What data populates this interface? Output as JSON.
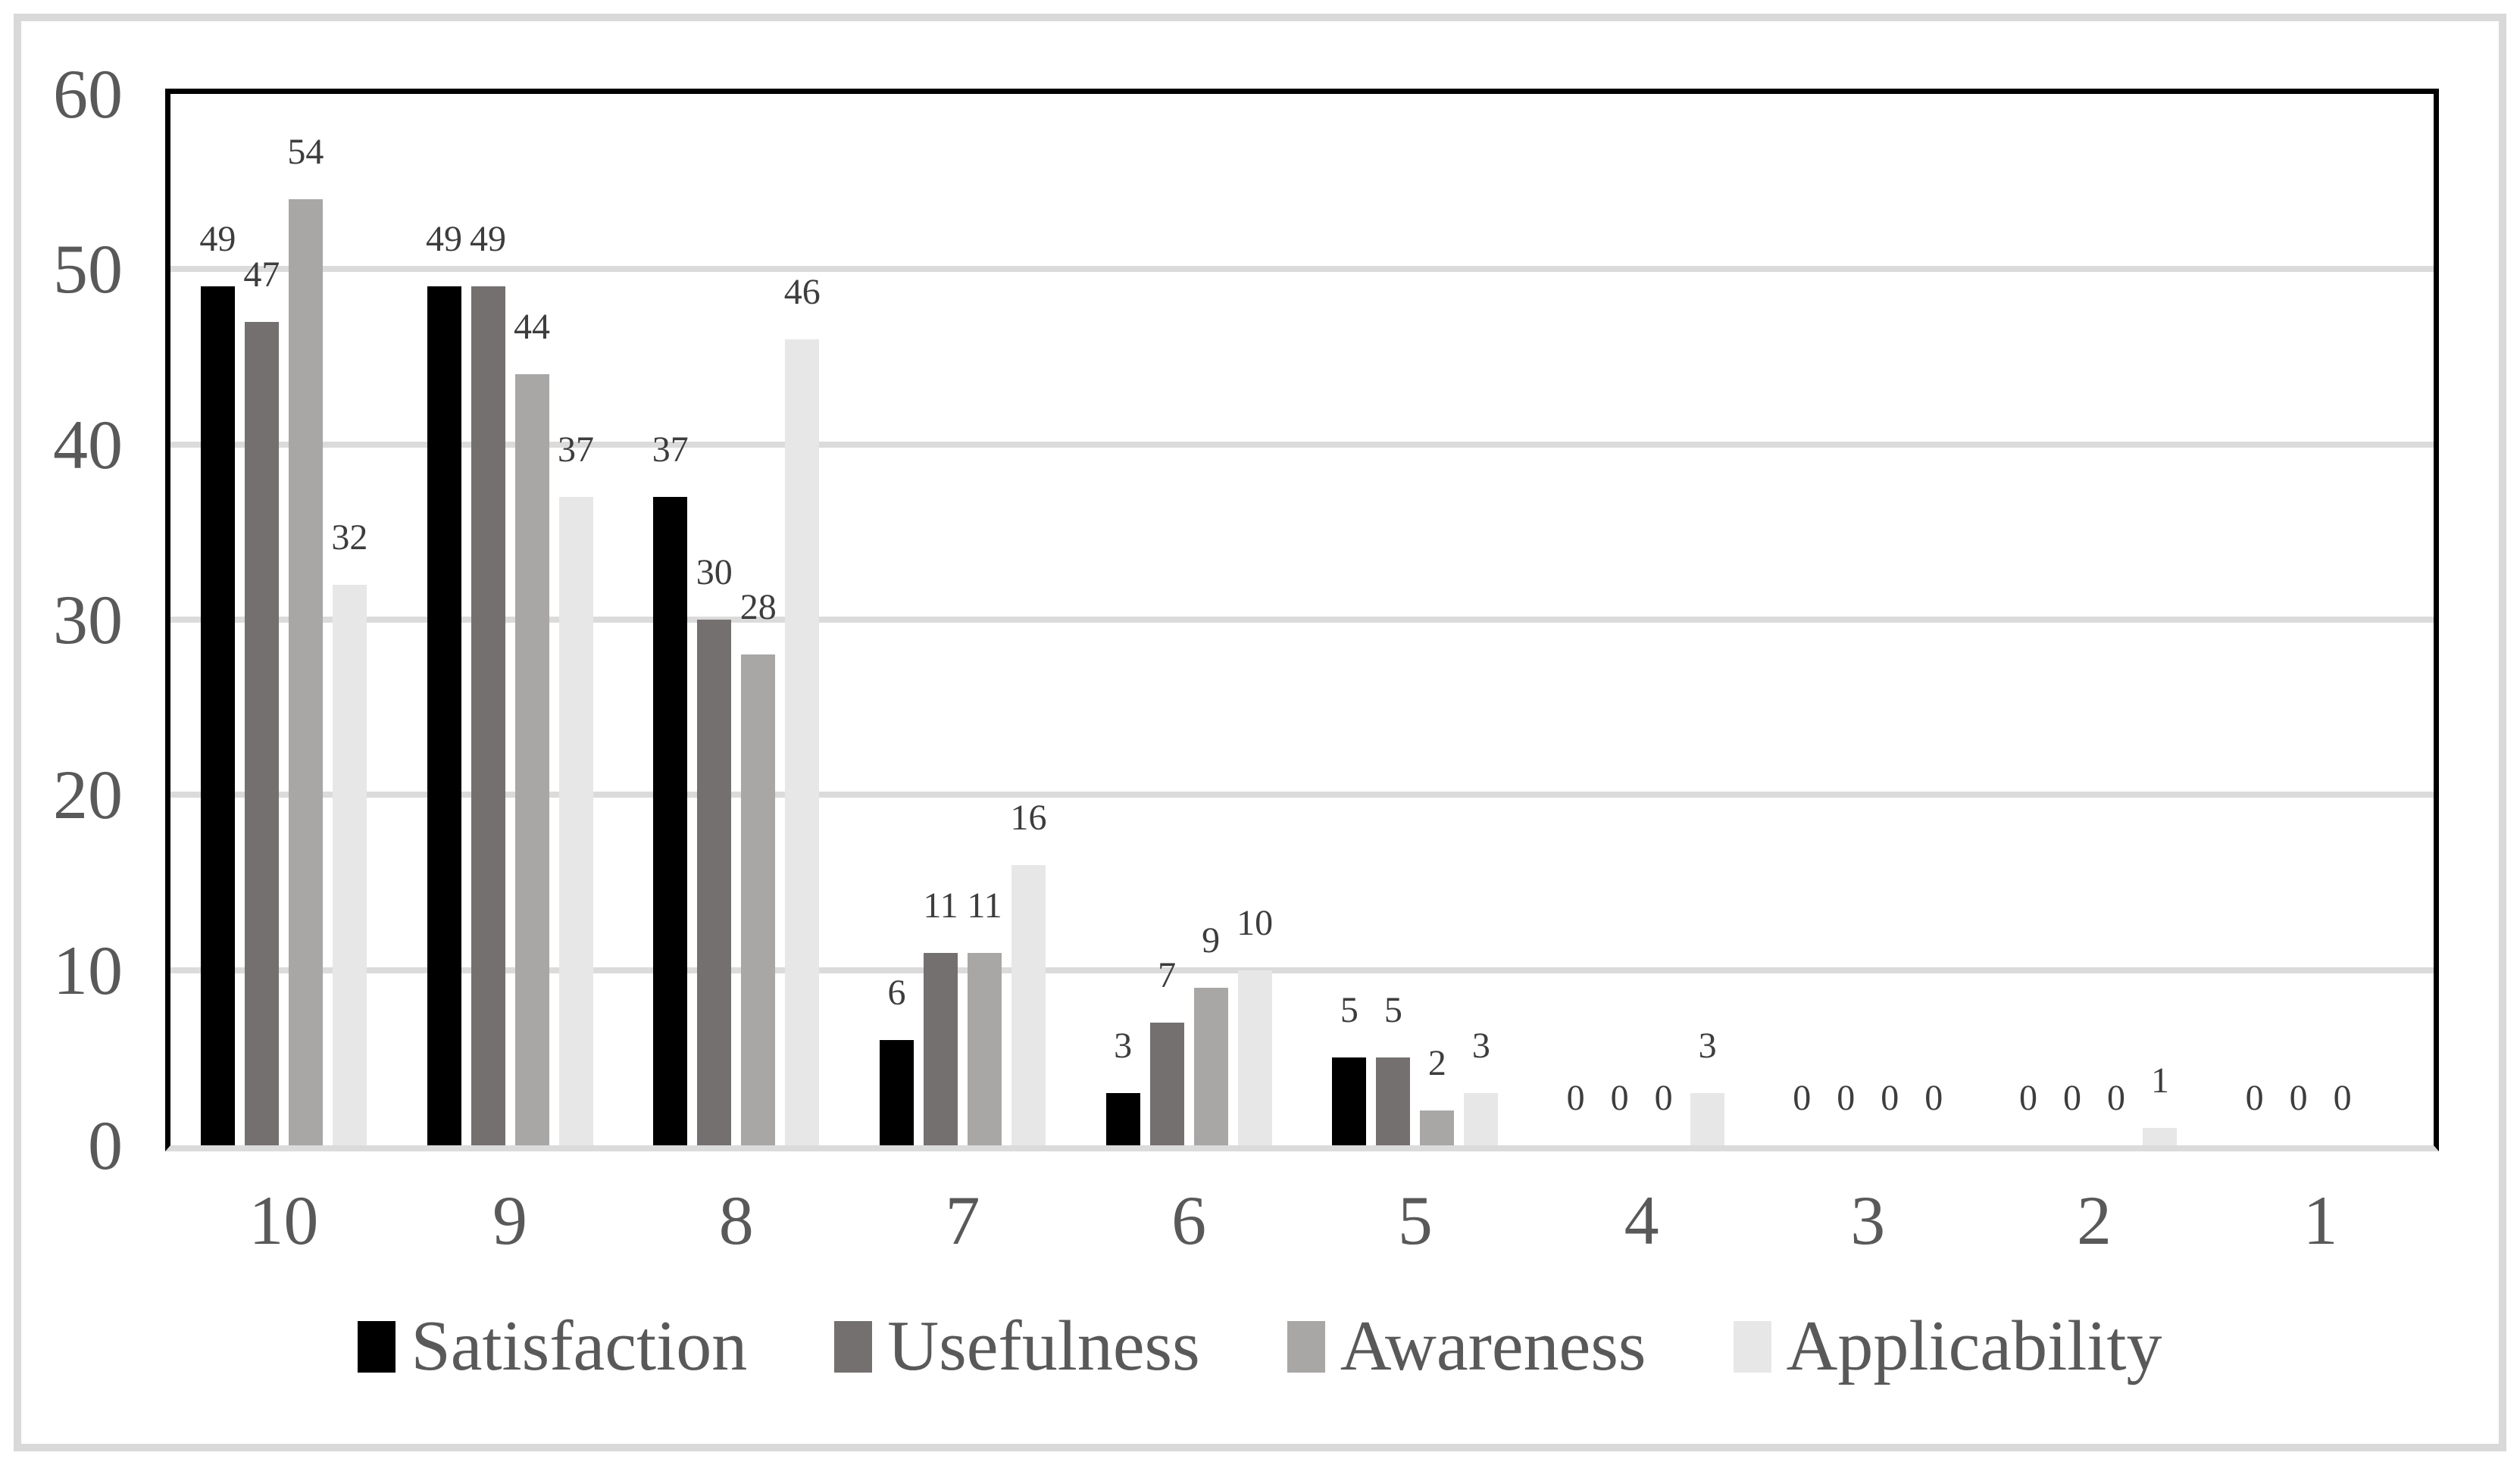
{
  "chart_data": {
    "type": "bar",
    "title": "",
    "xlabel": "",
    "ylabel": "",
    "categories": [
      "10",
      "9",
      "8",
      "7",
      "6",
      "5",
      "4",
      "3",
      "2",
      "1"
    ],
    "series": [
      {
        "name": "Satisfaction",
        "color": "#000000",
        "values": [
          49,
          49,
          37,
          6,
          3,
          5,
          0,
          0,
          0,
          0
        ]
      },
      {
        "name": "Usefulness",
        "color": "#757070",
        "values": [
          47,
          49,
          30,
          11,
          7,
          5,
          0,
          0,
          0,
          0
        ]
      },
      {
        "name": "Awareness",
        "color": "#A9A6A6",
        "values": [
          54,
          44,
          28,
          11,
          9,
          2,
          0,
          0,
          0,
          0
        ]
      },
      {
        "name": "Applicability",
        "color": "#E8E7E7",
        "values": [
          32,
          37,
          46,
          16,
          10,
          3,
          3,
          0,
          1,
          null
        ]
      }
    ],
    "ylim": [
      0,
      60
    ],
    "yticks": [
      0,
      10,
      20,
      30,
      40,
      50,
      60
    ],
    "grid": "horizontal",
    "legend_position": "bottom",
    "data_labels": "outside-end"
  },
  "style_colors": {
    "frame_border": "#D9D9D9",
    "plot_border": "#000000",
    "gridline": "#DBDBDB",
    "axis_text": "#595959",
    "data_label_text": "#3D3D3D",
    "background": "#FFFFFF"
  }
}
